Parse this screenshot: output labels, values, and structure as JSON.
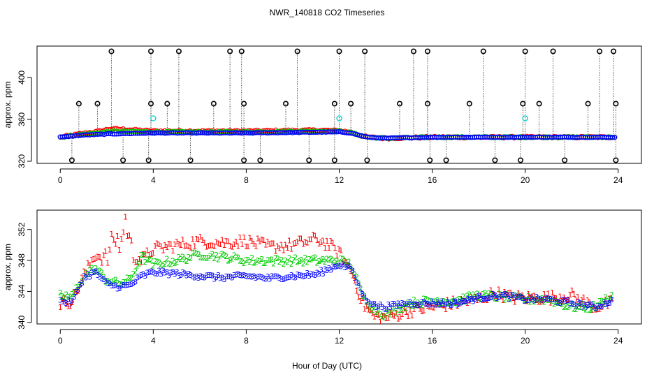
{
  "chart_data": [
    {
      "type": "scatter",
      "title": "NWR_140818  CO2 Timeseries",
      "xlabel": "",
      "ylabel": "approx. ppm",
      "xlim": [
        -1,
        25
      ],
      "ylim": [
        318,
        430
      ],
      "xticks": [
        "0",
        "4",
        "8",
        "12",
        "16",
        "20",
        "24"
      ],
      "yticks": [
        "320",
        "360",
        "400"
      ],
      "colors": {
        "s1": "#ff0000",
        "s2": "#00cc00",
        "s3": "#0000ff",
        "outlier": "#000000",
        "cyan": "#00cccc"
      },
      "outlier_high_hours": [
        2.2,
        3.9,
        5.1,
        7.3,
        7.8,
        10.2,
        12.0,
        13.1,
        15.2,
        15.8,
        18.2,
        20.0,
        21.2,
        23.2,
        23.8
      ],
      "outlier_mid_hours": [
        0.8,
        1.6,
        3.9,
        4.6,
        6.6,
        7.9,
        9.7,
        11.8,
        12.5,
        14.6,
        15.8,
        17.6,
        19.9,
        20.6,
        22.7,
        23.9
      ],
      "outlier_low_hours": [
        0.5,
        2.7,
        3.8,
        5.6,
        7.9,
        8.6,
        10.7,
        11.8,
        13.2,
        15.9,
        16.6,
        18.7,
        19.8,
        21.7,
        23.9
      ],
      "outlier_high_value": 425,
      "outlier_mid_value": 375,
      "outlier_low_value": 321,
      "cyan_points": [
        {
          "x": 4.0,
          "y": 361
        },
        {
          "x": 12.0,
          "y": 361
        },
        {
          "x": 20.0,
          "y": 361
        }
      ]
    },
    {
      "type": "scatter",
      "title": "",
      "xlabel": "Hour of Day (UTC)",
      "ylabel": "approx. ppm",
      "xlim": [
        -1,
        25
      ],
      "ylim": [
        339.8,
        354.5
      ],
      "xticks": [
        "0",
        "4",
        "8",
        "12",
        "16",
        "20",
        "24"
      ],
      "yticks": [
        "340",
        "344",
        "348",
        "352"
      ],
      "series": [
        {
          "name": "1",
          "color": "#ff0000",
          "anchors": [
            [
              0,
              342.5
            ],
            [
              0.5,
              342.8
            ],
            [
              1.0,
              346.0
            ],
            [
              1.5,
              348.8
            ],
            [
              2.0,
              348.0
            ],
            [
              2.3,
              351.0
            ],
            [
              2.6,
              350.0
            ],
            [
              2.8,
              353.3
            ],
            [
              3.1,
              349.0
            ],
            [
              3.5,
              348.0
            ],
            [
              4.0,
              349.5
            ],
            [
              5.0,
              350.0
            ],
            [
              6.0,
              350.5
            ],
            [
              7.0,
              350.3
            ],
            [
              8.0,
              350.5
            ],
            [
              9.0,
              349.8
            ],
            [
              10.0,
              350.0
            ],
            [
              11.0,
              350.8
            ],
            [
              11.6,
              350.0
            ],
            [
              12.0,
              349.0
            ],
            [
              12.5,
              346.8
            ],
            [
              13.0,
              342.5
            ],
            [
              13.5,
              340.8
            ],
            [
              14.0,
              340.6
            ],
            [
              15.0,
              341.5
            ],
            [
              16.0,
              342.0
            ],
            [
              17.0,
              342.5
            ],
            [
              18.0,
              343.0
            ],
            [
              18.7,
              343.8
            ],
            [
              19.5,
              343.2
            ],
            [
              20.0,
              343.2
            ],
            [
              21.0,
              343.2
            ],
            [
              22.0,
              343.5
            ],
            [
              23.0,
              342.0
            ],
            [
              23.7,
              342.5
            ]
          ]
        },
        {
          "name": "2",
          "color": "#00cc00",
          "anchors": [
            [
              0,
              343.5
            ],
            [
              0.5,
              343.3
            ],
            [
              1.0,
              346.0
            ],
            [
              1.5,
              347.0
            ],
            [
              2.0,
              345.5
            ],
            [
              2.5,
              345.0
            ],
            [
              3.0,
              345.5
            ],
            [
              3.5,
              348.5
            ],
            [
              4.0,
              347.5
            ],
            [
              5.0,
              348.0
            ],
            [
              6.0,
              348.8
            ],
            [
              7.0,
              348.5
            ],
            [
              8.0,
              348.0
            ],
            [
              9.0,
              348.0
            ],
            [
              10.0,
              348.0
            ],
            [
              11.0,
              348.0
            ],
            [
              12.0,
              348.0
            ],
            [
              12.5,
              347.5
            ],
            [
              13.0,
              343.5
            ],
            [
              13.5,
              341.8
            ],
            [
              14.0,
              341.0
            ],
            [
              15.0,
              342.5
            ],
            [
              16.0,
              342.8
            ],
            [
              17.0,
              342.8
            ],
            [
              18.0,
              343.5
            ],
            [
              19.0,
              343.3
            ],
            [
              20.0,
              343.0
            ],
            [
              21.0,
              343.0
            ],
            [
              22.0,
              342.0
            ],
            [
              23.0,
              342.0
            ],
            [
              23.7,
              343.5
            ]
          ]
        },
        {
          "name": "3",
          "color": "#0000ff",
          "anchors": [
            [
              0,
              342.8
            ],
            [
              0.5,
              342.6
            ],
            [
              1.0,
              345.8
            ],
            [
              1.5,
              346.5
            ],
            [
              2.0,
              345.0
            ],
            [
              2.5,
              344.6
            ],
            [
              3.0,
              344.8
            ],
            [
              3.5,
              346.0
            ],
            [
              4.0,
              346.5
            ],
            [
              5.0,
              346.3
            ],
            [
              6.0,
              346.0
            ],
            [
              7.0,
              345.8
            ],
            [
              8.0,
              346.0
            ],
            [
              9.0,
              345.7
            ],
            [
              10.0,
              346.0
            ],
            [
              11.0,
              346.2
            ],
            [
              12.0,
              347.5
            ],
            [
              12.5,
              347.0
            ],
            [
              13.0,
              343.5
            ],
            [
              13.5,
              342.2
            ],
            [
              14.0,
              342.0
            ],
            [
              15.0,
              342.5
            ],
            [
              16.0,
              342.5
            ],
            [
              17.0,
              342.5
            ],
            [
              18.0,
              343.2
            ],
            [
              19.0,
              343.5
            ],
            [
              20.0,
              343.0
            ],
            [
              21.0,
              343.0
            ],
            [
              22.0,
              342.5
            ],
            [
              23.0,
              342.0
            ],
            [
              23.7,
              342.8
            ]
          ]
        }
      ]
    }
  ]
}
